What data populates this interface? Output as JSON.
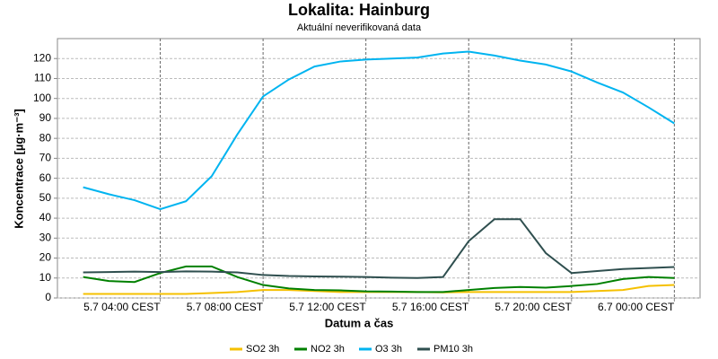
{
  "chart_data": {
    "type": "line",
    "title": "Lokalita: Hainburg",
    "subtitle": "Aktuální neverifikovaná data",
    "xlabel": "Datum a čas",
    "ylabel": "Koncentrace [µg·m⁻³]",
    "x": [
      1,
      2,
      3,
      4,
      5,
      6,
      7,
      8,
      9,
      10,
      11,
      12,
      13,
      14,
      15,
      16,
      17,
      18,
      19,
      20,
      21,
      22,
      23,
      24
    ],
    "xlim": [
      0,
      25
    ],
    "xticks": [
      {
        "value": 4,
        "label": "5.7 04:00 CEST"
      },
      {
        "value": 8,
        "label": "5.7 08:00 CEST"
      },
      {
        "value": 12,
        "label": "5.7 12:00 CEST"
      },
      {
        "value": 16,
        "label": "5.7 16:00 CEST"
      },
      {
        "value": 20,
        "label": "5.7 20:00 CEST"
      },
      {
        "value": 24,
        "label": "6.7 00:00 CEST"
      }
    ],
    "ylim": [
      0,
      130
    ],
    "yticks": [
      0,
      10,
      20,
      30,
      40,
      50,
      60,
      70,
      80,
      90,
      100,
      110,
      120
    ],
    "grid": true,
    "legend": "bottom",
    "series": [
      {
        "name": "SO2 3h",
        "color": "#f5c000",
        "values": [
          2,
          2,
          2,
          2,
          2,
          2.5,
          3,
          4,
          4,
          3.5,
          3,
          3,
          3,
          3,
          2.8,
          3,
          3,
          3,
          3,
          3,
          3.5,
          4,
          6,
          6.5
        ]
      },
      {
        "name": "NO2 3h",
        "color": "#008000",
        "values": [
          10.5,
          8.5,
          8,
          12.5,
          15.8,
          15.8,
          10.5,
          6.5,
          4.8,
          4,
          3.8,
          3.3,
          3.2,
          3,
          3,
          4,
          5,
          5.5,
          5.2,
          6,
          7,
          9.5,
          10.5,
          10
        ]
      },
      {
        "name": "O3 3h",
        "color": "#00b4f0",
        "values": [
          55.5,
          52,
          49,
          44.5,
          48.5,
          61,
          82,
          101,
          109.5,
          116,
          118.5,
          119.5,
          120,
          120.5,
          122.5,
          123.5,
          121.5,
          119,
          117,
          113.5,
          108,
          103,
          95.5,
          87.5
        ]
      },
      {
        "name": "PM10 3h",
        "color": "#2f4f4f",
        "values": [
          12.8,
          13,
          13.2,
          13,
          13.3,
          13.2,
          12.8,
          11.5,
          11,
          10.8,
          10.7,
          10.5,
          10.2,
          10,
          10.5,
          28.5,
          39.5,
          39.5,
          22.5,
          12.5,
          13.5,
          14.5,
          15,
          15.5
        ]
      }
    ]
  }
}
